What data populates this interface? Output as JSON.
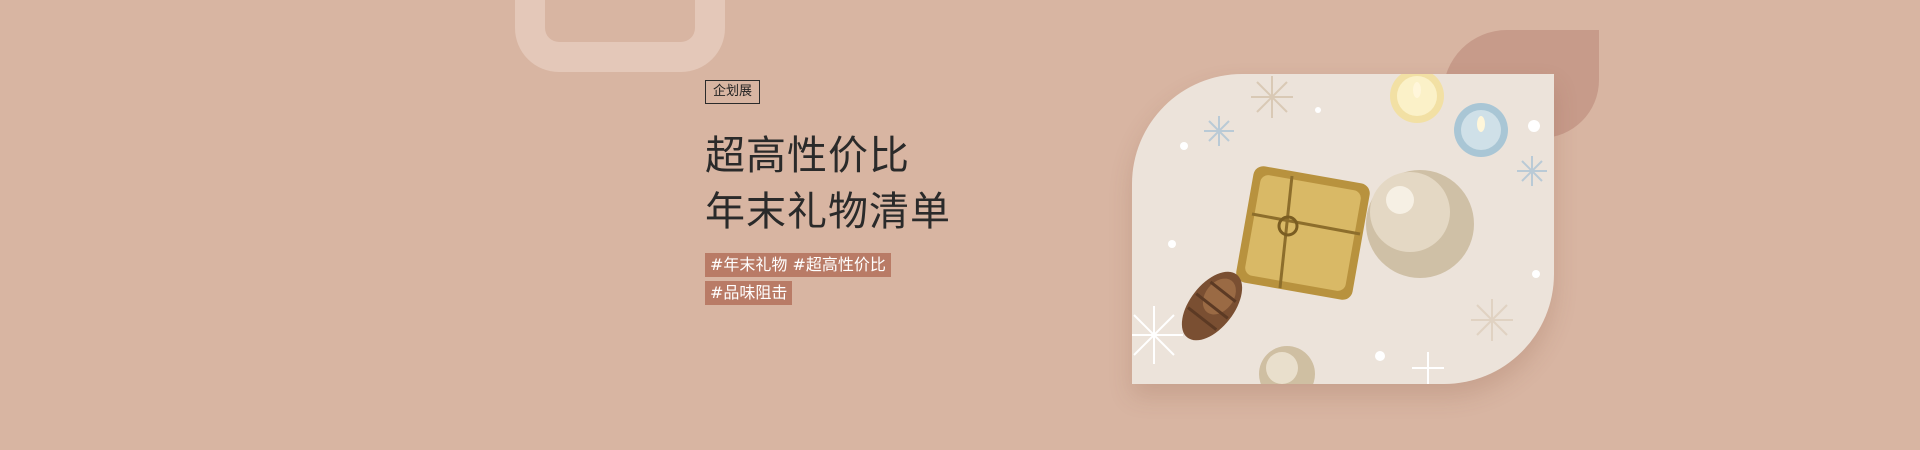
{
  "banner": {
    "category_badge": "企划展",
    "title_line1": "超高性价比",
    "title_line2": "年末礼物清单",
    "tags_line1": "#年末礼物 #超高性价比",
    "tags_line2": "#品味阻击",
    "image": {
      "items": [
        "gift-box-icon",
        "glitter-ornament-ball-icon",
        "pine-cone-icon",
        "candle-icon",
        "snowflake-icon"
      ]
    }
  },
  "colors": {
    "background": "#d8b5a2",
    "tag_bg": "#b97b66",
    "title_text": "#2a2a2a",
    "photo_bg": "#ece3da",
    "accent_leaf": "#c79b8a",
    "frame_deco": "#e4c8b9"
  }
}
